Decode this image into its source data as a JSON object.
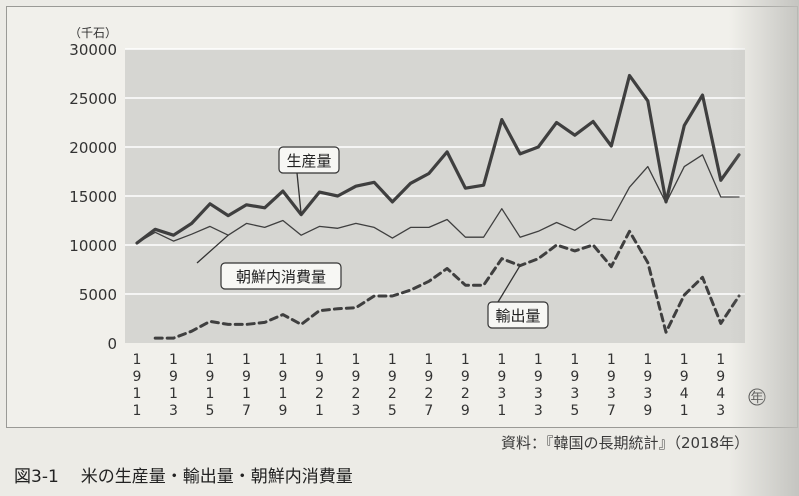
{
  "chart_data": {
    "type": "line",
    "unit_label": "（千石）",
    "x_unit_label": "年",
    "x": [
      1911,
      1912,
      1913,
      1914,
      1915,
      1916,
      1917,
      1918,
      1919,
      1920,
      1921,
      1922,
      1923,
      1924,
      1925,
      1926,
      1927,
      1928,
      1929,
      1930,
      1931,
      1932,
      1933,
      1934,
      1935,
      1936,
      1937,
      1938,
      1939,
      1940,
      1941,
      1942,
      1943,
      1944
    ],
    "x_tick_labels": [
      "1911",
      "1913",
      "1915",
      "1917",
      "1919",
      "1921",
      "1923",
      "1925",
      "1927",
      "1929",
      "1931",
      "1933",
      "1935",
      "1937",
      "1939",
      "1941",
      "1943"
    ],
    "ylim": [
      0,
      30000
    ],
    "y_ticks": [
      0,
      5000,
      10000,
      15000,
      20000,
      25000,
      30000
    ],
    "grid": true,
    "series": [
      {
        "name": "生産量",
        "style": "thick",
        "color": "#3f3f3f",
        "values": [
          10200,
          11600,
          11000,
          12200,
          14200,
          13000,
          14100,
          13800,
          15500,
          13100,
          15400,
          15000,
          16000,
          16400,
          14400,
          16300,
          17300,
          19500,
          15800,
          16100,
          22800,
          19300,
          20000,
          22500,
          21200,
          22600,
          20100,
          27300,
          24700,
          14400,
          22200,
          25300,
          16600,
          19200
        ]
      },
      {
        "name": "朝鮮内消費量",
        "style": "thin",
        "color": "#3f3f3f",
        "values": [
          10200,
          11300,
          10400,
          11100,
          11900,
          11000,
          12200,
          11800,
          12500,
          11000,
          11900,
          11700,
          12200,
          11800,
          10700,
          11800,
          11800,
          12600,
          10800,
          10800,
          13700,
          10800,
          11400,
          12300,
          11500,
          12700,
          12500,
          15900,
          18000,
          14300,
          18000,
          19200,
          14900,
          14900
        ]
      },
      {
        "name": "輸出量",
        "style": "dashed",
        "color": "#3f3f3f",
        "values": [
          null,
          500,
          500,
          1200,
          2200,
          1900,
          1900,
          2100,
          2900,
          1900,
          3300,
          3500,
          3600,
          4800,
          4800,
          5400,
          6300,
          7600,
          5900,
          5900,
          8600,
          7900,
          8600,
          10000,
          9400,
          10000,
          7800,
          11400,
          8200,
          1100,
          4900,
          6700,
          2000,
          4800
        ]
      }
    ]
  },
  "source_text": "資料：『韓国の長期統計』（2018年）",
  "caption": {
    "number": "図3-1",
    "title": "米の生産量・輸出量・朝鮮内消費量"
  }
}
